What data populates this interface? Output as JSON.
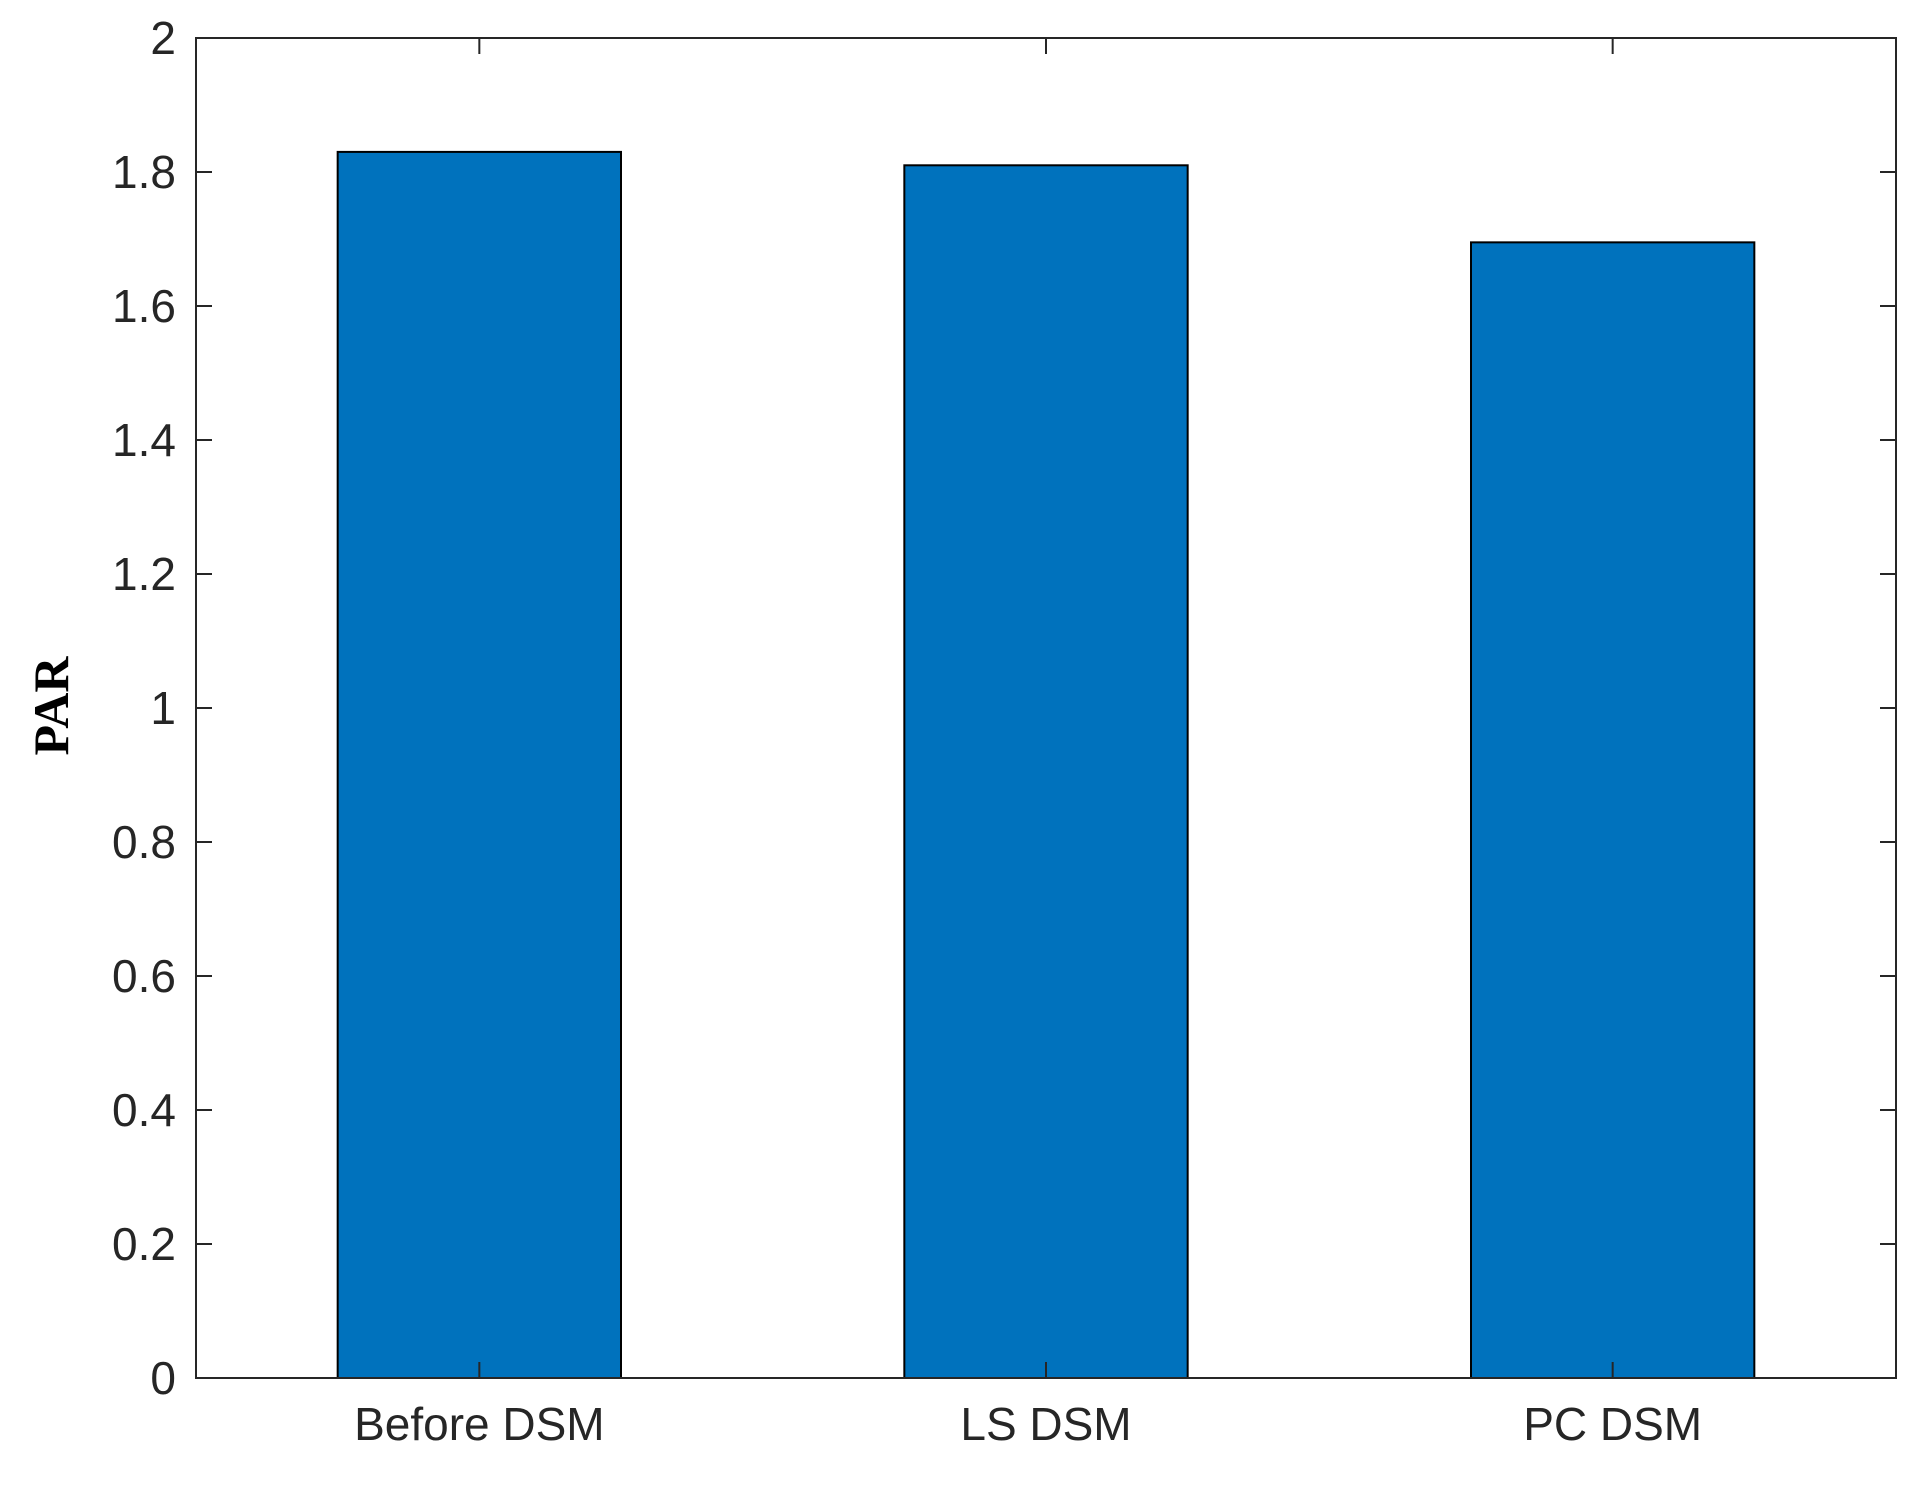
{
  "chart_data": {
    "type": "bar",
    "title": "",
    "xlabel": "",
    "ylabel": "PAR",
    "categories": [
      "Before DSM",
      "LS DSM",
      "PC DSM"
    ],
    "values": [
      1.83,
      1.81,
      1.695
    ],
    "ylim": [
      0,
      2
    ],
    "yticks": [
      "0",
      "0.2",
      "0.4",
      "0.6",
      "0.8",
      "1",
      "1.2",
      "1.4",
      "1.6",
      "1.8",
      "2"
    ],
    "grid": false,
    "legend": "none",
    "bar_color": "#0072BD",
    "bar_edge_color": "#000000"
  }
}
